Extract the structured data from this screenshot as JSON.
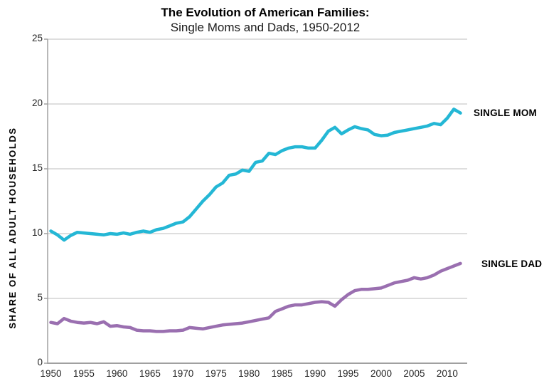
{
  "title": {
    "line1": "The Evolution of American Families:",
    "line2": "Single Moms and Dads, 1950-2012"
  },
  "y_axis": {
    "label": "SHARE OF ALL ADULT HOUSEHOLDS",
    "ticks": [
      0,
      5,
      10,
      15,
      20,
      25
    ],
    "range": [
      0,
      25
    ]
  },
  "x_axis": {
    "ticks": [
      1950,
      1955,
      1960,
      1965,
      1970,
      1975,
      1980,
      1985,
      1990,
      1995,
      2000,
      2005,
      2010
    ]
  },
  "colors": {
    "single_mom": "#24b7d5",
    "single_dad": "#9a6fb0",
    "gridline": "#c9c9c9",
    "axis": "#a0a0a0",
    "text": "#262626",
    "title_text": "#000000"
  },
  "chart_data": {
    "type": "line",
    "title": "The Evolution of American Families:",
    "subtitle": "Single Moms and Dads, 1950-2012",
    "xlabel": "",
    "ylabel": "SHARE OF ALL ADULT HOUSEHOLDS",
    "ylim": [
      0,
      25
    ],
    "x_range": [
      1950,
      2012
    ],
    "x_step": 1,
    "x_tick_labels": [
      1950,
      1955,
      1960,
      1965,
      1970,
      1975,
      1980,
      1985,
      1990,
      1995,
      2000,
      2005,
      2010
    ],
    "y_tick_labels": [
      0,
      5,
      10,
      15,
      20,
      25
    ],
    "grid": "horizontal",
    "legend_position": "end-of-line-labels",
    "series": [
      {
        "name": "SINGLE MOM",
        "color": "#24b7d5",
        "values": [
          10.2,
          9.9,
          9.5,
          9.85,
          10.1,
          10.05,
          10.0,
          9.95,
          9.9,
          10.0,
          9.95,
          10.05,
          9.95,
          10.1,
          10.2,
          10.1,
          10.3,
          10.4,
          10.6,
          10.8,
          10.9,
          11.3,
          11.9,
          12.5,
          13.0,
          13.6,
          13.9,
          14.5,
          14.6,
          14.9,
          14.8,
          15.5,
          15.6,
          16.2,
          16.1,
          16.4,
          16.6,
          16.7,
          16.7,
          16.6,
          16.6,
          17.2,
          17.9,
          18.2,
          17.7,
          18.0,
          18.25,
          18.1,
          18.0,
          17.65,
          17.55,
          17.6,
          17.8,
          17.9,
          18.0,
          18.1,
          18.2,
          18.3,
          18.5,
          18.4,
          18.9,
          19.6,
          19.3
        ]
      },
      {
        "name": "SINGLE DAD",
        "color": "#9a6fb0",
        "values": [
          3.15,
          3.05,
          3.45,
          3.25,
          3.15,
          3.1,
          3.15,
          3.05,
          3.2,
          2.85,
          2.9,
          2.8,
          2.75,
          2.55,
          2.5,
          2.5,
          2.45,
          2.45,
          2.5,
          2.5,
          2.55,
          2.75,
          2.7,
          2.65,
          2.75,
          2.85,
          2.95,
          3.0,
          3.05,
          3.1,
          3.2,
          3.3,
          3.4,
          3.5,
          4.0,
          4.2,
          4.4,
          4.5,
          4.5,
          4.6,
          4.7,
          4.75,
          4.7,
          4.4,
          4.9,
          5.3,
          5.6,
          5.7,
          5.7,
          5.75,
          5.8,
          6.0,
          6.2,
          6.3,
          6.4,
          6.6,
          6.5,
          6.6,
          6.8,
          7.1,
          7.3,
          7.5,
          7.7
        ]
      }
    ]
  }
}
